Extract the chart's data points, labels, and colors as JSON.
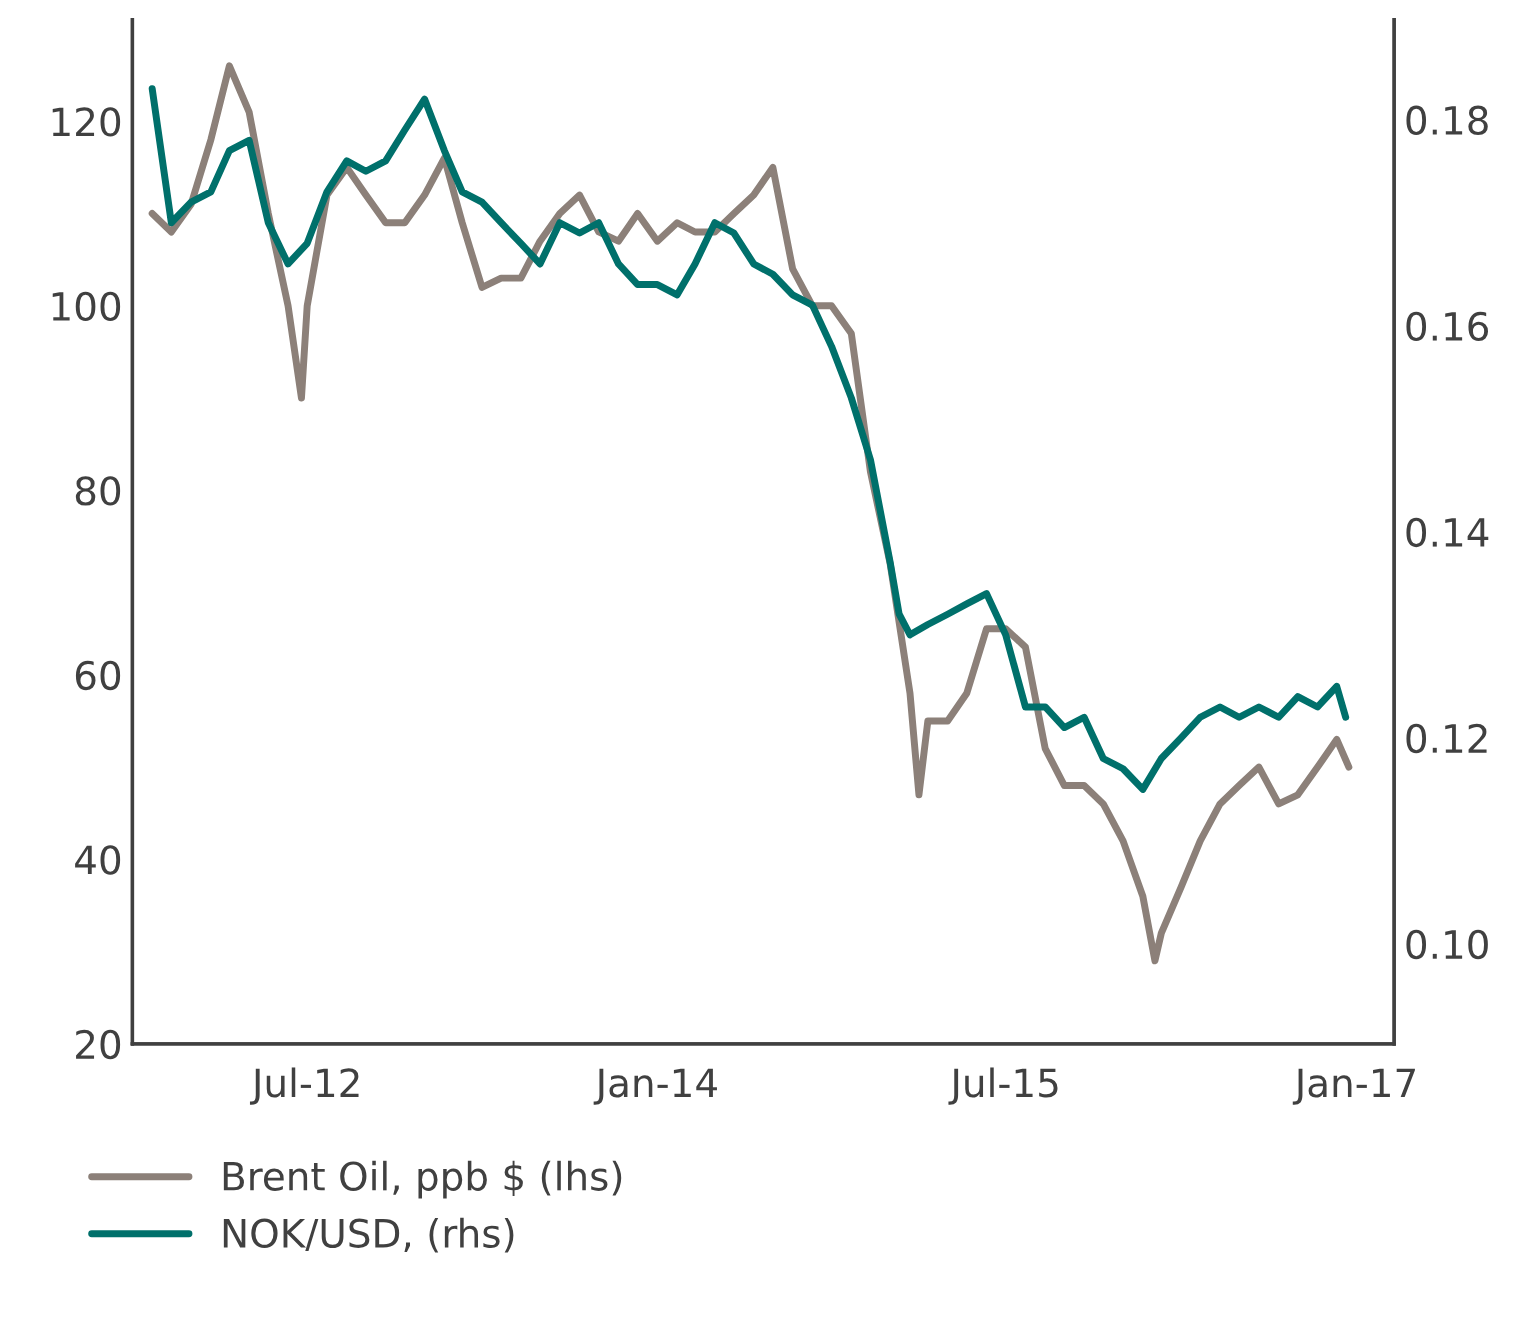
{
  "chart_data": {
    "type": "line",
    "xlim": [
      "2011-10-01",
      "2017-03-01"
    ],
    "xticks": [
      {
        "value": "2012-07-01",
        "label": "Jul-12"
      },
      {
        "value": "2014-01-01",
        "label": "Jan-14"
      },
      {
        "value": "2015-07-01",
        "label": "Jul-15"
      },
      {
        "value": "2017-01-01",
        "label": "Jan-17"
      }
    ],
    "ylim": [
      20,
      131
    ],
    "yticks": [
      20,
      40,
      60,
      80,
      100,
      120
    ],
    "y2lim": [
      0.0903,
      0.1897
    ],
    "y2ticks": [
      {
        "value": 0.1,
        "label": "0.10"
      },
      {
        "value": 0.12,
        "label": "0.12"
      },
      {
        "value": 0.14,
        "label": "0.14"
      },
      {
        "value": 0.16,
        "label": "0.16"
      },
      {
        "value": 0.18,
        "label": "0.18"
      }
    ],
    "grid": false,
    "legend": "bottom",
    "line_style": "solid",
    "marker": "none",
    "series": [
      {
        "name": "Brent Oil, ppb $ (lhs)",
        "color": "#8c8079",
        "x": [
          "2011-11-01",
          "2011-12-01",
          "2012-01-01",
          "2012-02-01",
          "2012-03-01",
          "2012-04-01",
          "2012-05-01",
          "2012-06-01",
          "2012-06-22",
          "2012-07-01",
          "2012-08-01",
          "2012-09-01",
          "2012-10-01",
          "2012-11-01",
          "2012-12-01",
          "2013-01-01",
          "2013-02-01",
          "2013-03-01",
          "2013-04-01",
          "2013-05-01",
          "2013-06-01",
          "2013-07-01",
          "2013-08-01",
          "2013-09-01",
          "2013-10-01",
          "2013-11-01",
          "2013-12-01",
          "2014-01-01",
          "2014-02-01",
          "2014-03-01",
          "2014-04-01",
          "2014-05-01",
          "2014-06-01",
          "2014-07-01",
          "2014-08-01",
          "2014-09-01",
          "2014-10-01",
          "2014-11-01",
          "2014-12-01",
          "2015-01-01",
          "2015-02-01",
          "2015-02-15",
          "2015-03-01",
          "2015-04-01",
          "2015-05-01",
          "2015-06-01",
          "2015-07-01",
          "2015-08-01",
          "2015-09-01",
          "2015-10-01",
          "2015-11-01",
          "2015-12-01",
          "2016-01-01",
          "2016-02-01",
          "2016-02-20",
          "2016-03-01",
          "2016-04-01",
          "2016-05-01",
          "2016-06-01",
          "2016-07-01",
          "2016-08-01",
          "2016-09-01",
          "2016-10-01",
          "2016-11-01",
          "2016-12-01",
          "2016-12-20"
        ],
        "values": [
          110,
          108,
          111,
          118,
          126,
          121,
          110,
          100,
          90,
          100,
          112,
          115,
          112,
          109,
          109,
          112,
          116,
          109,
          102,
          103,
          103,
          107,
          110,
          112,
          108,
          107,
          110,
          107,
          109,
          108,
          108,
          110,
          112,
          115,
          104,
          100,
          100,
          97,
          82,
          72,
          58,
          47,
          55,
          55,
          58,
          65,
          65,
          63,
          52,
          48,
          48,
          46,
          42,
          36,
          29,
          32,
          37,
          42,
          46,
          48,
          50,
          46,
          47,
          50,
          53,
          50
        ]
      },
      {
        "name": "NOK/USD, (rhs)",
        "color": "#00706b",
        "axis": "y2",
        "x": [
          "2011-11-01",
          "2011-12-01",
          "2012-01-01",
          "2012-02-01",
          "2012-03-01",
          "2012-04-01",
          "2012-05-01",
          "2012-06-01",
          "2012-07-01",
          "2012-08-01",
          "2012-09-01",
          "2012-10-01",
          "2012-11-01",
          "2012-12-01",
          "2013-01-01",
          "2013-02-01",
          "2013-03-01",
          "2013-04-01",
          "2013-05-01",
          "2013-06-01",
          "2013-07-01",
          "2013-08-01",
          "2013-09-01",
          "2013-10-01",
          "2013-11-01",
          "2013-12-01",
          "2014-01-01",
          "2014-02-01",
          "2014-03-01",
          "2014-04-01",
          "2014-05-01",
          "2014-06-01",
          "2014-07-01",
          "2014-08-01",
          "2014-09-01",
          "2014-10-01",
          "2014-11-01",
          "2014-12-01",
          "2015-01-01",
          "2015-01-15",
          "2015-02-01",
          "2015-03-01",
          "2015-04-01",
          "2015-05-01",
          "2015-06-01",
          "2015-07-01",
          "2015-08-01",
          "2015-09-01",
          "2015-10-01",
          "2015-11-01",
          "2015-12-01",
          "2016-01-01",
          "2016-02-01",
          "2016-03-01",
          "2016-04-01",
          "2016-05-01",
          "2016-06-01",
          "2016-07-01",
          "2016-08-01",
          "2016-09-01",
          "2016-10-01",
          "2016-11-01",
          "2016-12-01",
          "2016-12-15"
        ],
        "values": [
          0.183,
          0.17,
          0.172,
          0.173,
          0.177,
          0.178,
          0.17,
          0.166,
          0.168,
          0.173,
          0.176,
          0.175,
          0.176,
          0.179,
          0.182,
          0.177,
          0.173,
          0.172,
          0.17,
          0.168,
          0.166,
          0.17,
          0.169,
          0.17,
          0.166,
          0.164,
          0.164,
          0.163,
          0.166,
          0.17,
          0.169,
          0.166,
          0.165,
          0.163,
          0.162,
          0.158,
          0.153,
          0.147,
          0.137,
          0.132,
          0.13,
          0.131,
          0.132,
          0.133,
          0.134,
          0.13,
          0.123,
          0.123,
          0.121,
          0.122,
          0.118,
          0.117,
          0.115,
          0.118,
          0.12,
          0.122,
          0.123,
          0.122,
          0.123,
          0.122,
          0.124,
          0.123,
          0.125,
          0.122
        ]
      }
    ]
  }
}
